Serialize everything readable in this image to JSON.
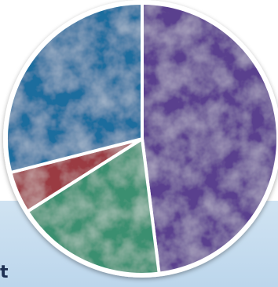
{
  "page_text": {
    "partial_label": "t"
  },
  "chart_data": {
    "type": "pie",
    "title": "",
    "legend": "none",
    "start_angle_deg": 0,
    "direction": "clockwise",
    "slices": [
      {
        "value": 48,
        "color": "#5a3f8e",
        "pattern": "frost-purple"
      },
      {
        "value": 18,
        "color": "#3a8f70",
        "pattern": "frost-green"
      },
      {
        "value": 5,
        "color": "#9a3a42",
        "pattern": "frost-red"
      },
      {
        "value": 29,
        "color": "#1e6d9e",
        "pattern": "frost-blue"
      }
    ],
    "border_color": "#ffffff"
  }
}
